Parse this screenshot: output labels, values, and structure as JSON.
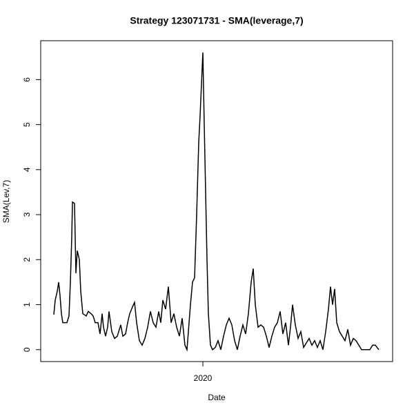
{
  "chart_data": {
    "type": "line",
    "title": "Strategy 123071731 - SMA(leverage,7)",
    "x_label": "Date",
    "y_label": "SMA(Lev,7)",
    "color": "#000000",
    "x": [
      2018.92,
      2018.93,
      2018.945,
      2018.955,
      2018.965,
      2018.975,
      2018.985,
      2019.015,
      2019.03,
      2019.04,
      2019.05,
      2019.055,
      2019.07,
      2019.08,
      2019.09,
      2019.105,
      2019.115,
      2019.13,
      2019.155,
      2019.17,
      2019.19,
      2019.205,
      2019.22,
      2019.24,
      2019.255,
      2019.27,
      2019.28,
      2019.295,
      2019.31,
      2019.32,
      2019.34,
      2019.36,
      2019.38,
      2019.405,
      2019.42,
      2019.44,
      2019.455,
      2019.47,
      2019.49,
      2019.505,
      2019.52,
      2019.54,
      2019.56,
      2019.58,
      2019.6,
      2019.62,
      2019.64,
      2019.66,
      2019.68,
      2019.695,
      2019.71,
      2019.73,
      2019.75,
      2019.77,
      2019.79,
      2019.81,
      2019.83,
      2019.85,
      2019.87,
      2019.885,
      2019.895,
      2019.91,
      2019.925,
      2019.94,
      2019.955,
      2019.97,
      2019.98,
      2019.99,
      2020,
      2020.01,
      2020.02,
      2020.03,
      2020.04,
      2020.055,
      2020.07,
      2020.09,
      2020.11,
      2020.13,
      2020.15,
      2020.17,
      2020.19,
      2020.21,
      2020.23,
      2020.25,
      2020.27,
      2020.29,
      2020.31,
      2020.33,
      2020.35,
      2020.365,
      2020.38,
      2020.4,
      2020.42,
      2020.44,
      2020.46,
      2020.48,
      2020.5,
      2020.52,
      2020.54,
      2020.56,
      2020.58,
      2020.6,
      2020.62,
      2020.635,
      2020.65,
      2020.67,
      2020.69,
      2020.71,
      2020.73,
      2020.75,
      2020.77,
      2020.79,
      2020.81,
      2020.83,
      2020.85,
      2020.87,
      2020.89,
      2020.91,
      2020.925,
      2020.94,
      2020.955,
      2020.97,
      2020.99,
      2021.01,
      2021.03,
      2021.05,
      2021.07,
      2021.09,
      2021.11,
      2021.13,
      2021.15,
      2021.18,
      2021.21,
      2021.23,
      2021.25,
      2021.275
    ],
    "values": [
      0.78,
      1.1,
      1.3,
      1.5,
      1.2,
      0.8,
      0.6,
      0.6,
      0.75,
      1.5,
      2.5,
      3.28,
      3.25,
      1.7,
      2.2,
      2.0,
      1.3,
      0.8,
      0.75,
      0.85,
      0.8,
      0.75,
      0.6,
      0.6,
      0.35,
      0.8,
      0.5,
      0.3,
      0.5,
      0.85,
      0.4,
      0.25,
      0.3,
      0.55,
      0.3,
      0.35,
      0.6,
      0.8,
      0.95,
      1.05,
      0.6,
      0.2,
      0.1,
      0.25,
      0.5,
      0.85,
      0.6,
      0.5,
      0.85,
      0.6,
      1.1,
      0.9,
      1.4,
      0.6,
      0.8,
      0.5,
      0.3,
      0.7,
      0.1,
      0.0,
      0.4,
      1.0,
      1.5,
      1.6,
      3.0,
      4.6,
      5.2,
      5.9,
      6.6,
      5.0,
      3.5,
      2.0,
      0.8,
      0.1,
      0.0,
      0.05,
      0.2,
      0.0,
      0.3,
      0.55,
      0.7,
      0.55,
      0.2,
      0.0,
      0.3,
      0.55,
      0.35,
      0.8,
      1.5,
      1.8,
      1.0,
      0.5,
      0.55,
      0.5,
      0.3,
      0.05,
      0.3,
      0.5,
      0.6,
      0.85,
      0.35,
      0.6,
      0.1,
      0.5,
      1.0,
      0.55,
      0.25,
      0.4,
      0.05,
      0.15,
      0.25,
      0.1,
      0.2,
      0.05,
      0.2,
      0.0,
      0.4,
      0.9,
      1.4,
      1.0,
      1.35,
      0.6,
      0.4,
      0.3,
      0.2,
      0.45,
      0.1,
      0.25,
      0.2,
      0.1,
      0.0,
      0.0,
      0.0,
      0.1,
      0.1,
      0.0
    ],
    "xlim": [
      2018.825,
      2021.375
    ],
    "xticks": [
      2020
    ],
    "ylim": [
      -0.264,
      6.864
    ],
    "yticks": [
      0,
      1,
      2,
      3,
      4,
      5,
      6
    ]
  }
}
